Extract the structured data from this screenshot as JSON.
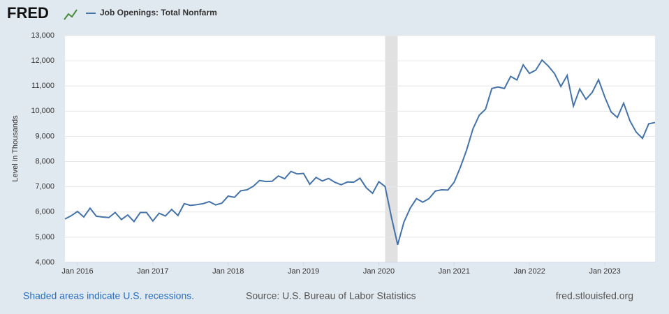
{
  "chart_data": {
    "type": "line",
    "brand": "FRED",
    "y_label": "Level in Thousands",
    "recession_note": "Shaded areas indicate U.S. recessions.",
    "source": "Source: U.S. Bureau of Labor Statistics",
    "site": "fred.stlouisfed.org",
    "x": [
      "2015-11",
      "2015-12",
      "2016-01",
      "2016-02",
      "2016-03",
      "2016-04",
      "2016-05",
      "2016-06",
      "2016-07",
      "2016-08",
      "2016-09",
      "2016-10",
      "2016-11",
      "2016-12",
      "2017-01",
      "2017-02",
      "2017-03",
      "2017-04",
      "2017-05",
      "2017-06",
      "2017-07",
      "2017-08",
      "2017-09",
      "2017-10",
      "2017-11",
      "2017-12",
      "2018-01",
      "2018-02",
      "2018-03",
      "2018-04",
      "2018-05",
      "2018-06",
      "2018-07",
      "2018-08",
      "2018-09",
      "2018-10",
      "2018-11",
      "2018-12",
      "2019-01",
      "2019-02",
      "2019-03",
      "2019-04",
      "2019-05",
      "2019-06",
      "2019-07",
      "2019-08",
      "2019-09",
      "2019-10",
      "2019-11",
      "2019-12",
      "2020-01",
      "2020-02",
      "2020-03",
      "2020-04",
      "2020-05",
      "2020-06",
      "2020-07",
      "2020-08",
      "2020-09",
      "2020-10",
      "2020-11",
      "2020-12",
      "2021-01",
      "2021-02",
      "2021-03",
      "2021-04",
      "2021-05",
      "2021-06",
      "2021-07",
      "2021-08",
      "2021-09",
      "2021-10",
      "2021-11",
      "2021-12",
      "2022-01",
      "2022-02",
      "2022-03",
      "2022-04",
      "2022-05",
      "2022-06",
      "2022-07",
      "2022-08",
      "2022-09",
      "2022-10",
      "2022-11",
      "2022-12",
      "2023-01",
      "2023-02",
      "2023-03",
      "2023-04",
      "2023-05",
      "2023-06",
      "2023-07",
      "2023-08",
      "2023-09"
    ],
    "series": [
      {
        "name": "Job Openings: Total Nonfarm",
        "color": "#4572a7",
        "values": [
          5720,
          5850,
          6020,
          5800,
          6150,
          5830,
          5800,
          5780,
          5980,
          5700,
          5880,
          5620,
          5980,
          5980,
          5640,
          5950,
          5840,
          6100,
          5860,
          6330,
          6260,
          6290,
          6330,
          6410,
          6280,
          6350,
          6630,
          6580,
          6840,
          6880,
          7020,
          7250,
          7210,
          7220,
          7430,
          7320,
          7610,
          7510,
          7530,
          7100,
          7370,
          7230,
          7330,
          7180,
          7080,
          7190,
          7180,
          7340,
          6960,
          6740,
          7200,
          7010,
          5800,
          4700,
          5600,
          6150,
          6530,
          6390,
          6530,
          6830,
          6880,
          6870,
          7180,
          7780,
          8470,
          9300,
          9840,
          10080,
          10900,
          10960,
          10900,
          11380,
          11240,
          11840,
          11500,
          11630,
          12030,
          11790,
          11490,
          10980,
          11420,
          10200,
          10880,
          10470,
          10750,
          11250,
          10560,
          9970,
          9750,
          10320,
          9620,
          9170,
          8920,
          9500,
          9550
        ]
      }
    ],
    "recessions": [
      {
        "start": "2020-02",
        "end": "2020-04"
      }
    ],
    "xlim": [
      "2015-11",
      "2023-09"
    ],
    "xticks": [
      {
        "value": "2016-01",
        "label": "Jan 2016"
      },
      {
        "value": "2017-01",
        "label": "Jan 2017"
      },
      {
        "value": "2018-01",
        "label": "Jan 2018"
      },
      {
        "value": "2019-01",
        "label": "Jan 2019"
      },
      {
        "value": "2020-01",
        "label": "Jan 2020"
      },
      {
        "value": "2021-01",
        "label": "Jan 2021"
      },
      {
        "value": "2022-01",
        "label": "Jan 2022"
      },
      {
        "value": "2023-01",
        "label": "Jan 2023"
      }
    ],
    "ylim": [
      4000,
      13000
    ],
    "yticks": [
      {
        "value": 4000,
        "label": "4,000"
      },
      {
        "value": 5000,
        "label": "5,000"
      },
      {
        "value": 6000,
        "label": "6,000"
      },
      {
        "value": 7000,
        "label": "7,000"
      },
      {
        "value": 8000,
        "label": "8,000"
      },
      {
        "value": 9000,
        "label": "9,000"
      },
      {
        "value": 10000,
        "label": "10,000"
      },
      {
        "value": 11000,
        "label": "11,000"
      },
      {
        "value": 12000,
        "label": "12,000"
      },
      {
        "value": 13000,
        "label": "13,000"
      }
    ],
    "grid": true
  }
}
